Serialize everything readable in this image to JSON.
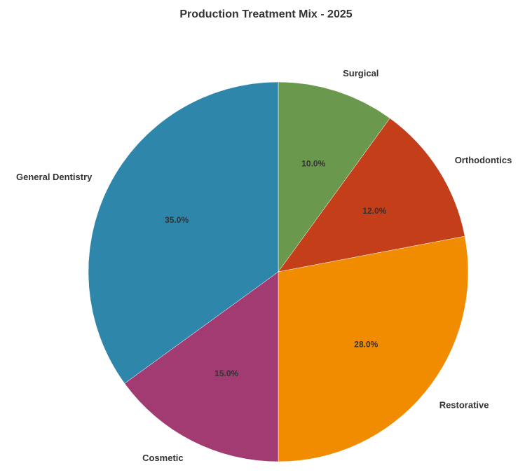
{
  "chart_data": {
    "type": "pie",
    "title": "Production Treatment Mix - 2025",
    "start_angle_deg": 90,
    "direction": "clockwise",
    "slices": [
      {
        "label": "Surgical",
        "value": 10.0,
        "percent_label": "10.0%",
        "color": "#6a994e"
      },
      {
        "label": "Orthodontics",
        "value": 12.0,
        "percent_label": "12.0%",
        "color": "#c43e1a"
      },
      {
        "label": "Restorative",
        "value": 28.0,
        "percent_label": "28.0%",
        "color": "#f18c00"
      },
      {
        "label": "Cosmetic",
        "value": 15.0,
        "percent_label": "15.0%",
        "color": "#a23b72"
      },
      {
        "label": "General Dentistry",
        "value": 35.0,
        "percent_label": "35.0%",
        "color": "#2e86ab"
      }
    ]
  }
}
